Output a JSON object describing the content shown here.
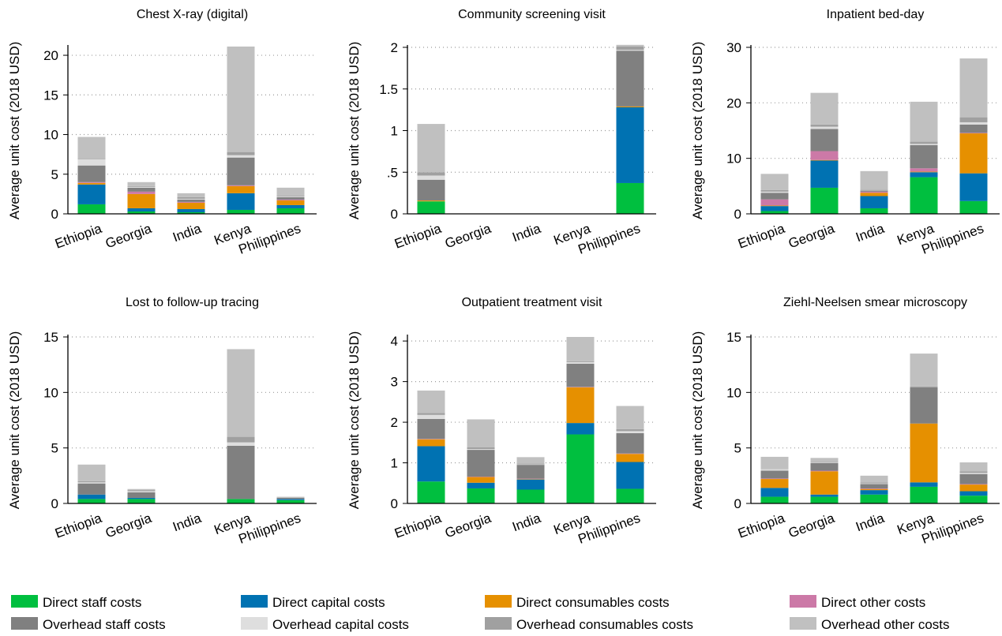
{
  "chart_data": {
    "type": "bar",
    "stacked": true,
    "ylabel": "Average unit cost (2018 USD)",
    "countries": [
      "Ethiopia",
      "Georgia",
      "India",
      "Kenya",
      "Philippines"
    ],
    "grid": "horizontal dotted",
    "legend_position": "bottom",
    "components": [
      {
        "name": "Direct staff costs",
        "color": "#00bf3f"
      },
      {
        "name": "Direct capital costs",
        "color": "#0072b2"
      },
      {
        "name": "Direct consumables costs",
        "color": "#e69000"
      },
      {
        "name": "Direct other costs",
        "color": "#cc79a7"
      },
      {
        "name": "Overhead staff costs",
        "color": "#808080"
      },
      {
        "name": "Overhead capital costs",
        "color": "#dedede"
      },
      {
        "name": "Overhead consumables costs",
        "color": "#a0a0a0"
      },
      {
        "name": "Overhead other costs",
        "color": "#c0c0c0"
      }
    ],
    "panels": [
      {
        "title": "Chest X-ray (digital)",
        "ylim": [
          0,
          21
        ],
        "ticks": [
          0,
          5,
          10,
          15,
          20
        ],
        "tick_labels": [
          "0",
          "5",
          "10",
          "15",
          "20"
        ],
        "values": [
          [
            1.2,
            2.5,
            0.2,
            0.1,
            2.1,
            0.8,
            0.1,
            2.7
          ],
          [
            0.3,
            0.4,
            1.8,
            0.3,
            0.5,
            0.1,
            0.1,
            0.5
          ],
          [
            0.2,
            0.4,
            0.8,
            0.1,
            0.3,
            0.1,
            0.2,
            0.5
          ],
          [
            0.5,
            2.1,
            0.9,
            0.1,
            3.5,
            0.3,
            0.4,
            13.3
          ],
          [
            0.7,
            0.4,
            0.6,
            0.1,
            0.3,
            0.1,
            0.1,
            1.0
          ]
        ]
      },
      {
        "title": "Community screening visit",
        "ylim": [
          0,
          2
        ],
        "ticks": [
          0,
          0.5,
          1,
          1.5,
          2
        ],
        "tick_labels": [
          "0",
          ".5",
          "1",
          "1.5",
          "2"
        ],
        "values": [
          [
            0.15,
            0.0,
            0.01,
            0.0,
            0.25,
            0.05,
            0.04,
            0.58
          ],
          [
            0,
            0,
            0,
            0,
            0,
            0,
            0,
            0
          ],
          [
            0,
            0,
            0,
            0,
            0,
            0,
            0,
            0
          ],
          [
            0,
            0,
            0,
            0,
            0,
            0,
            0,
            0
          ],
          [
            0.37,
            0.91,
            0.01,
            0.0,
            0.67,
            0.01,
            0.04,
            0.02
          ]
        ]
      },
      {
        "title": "Inpatient bed-day",
        "ylim": [
          0,
          30
        ],
        "ticks": [
          0,
          10,
          20,
          30
        ],
        "tick_labels": [
          "0",
          "10",
          "20",
          "30"
        ],
        "values": [
          [
            0.5,
            0.9,
            0.1,
            1.1,
            1.2,
            0.2,
            0.3,
            2.9
          ],
          [
            4.7,
            4.9,
            0.1,
            1.6,
            4.0,
            0.4,
            0.4,
            5.7
          ],
          [
            1.0,
            2.2,
            0.6,
            0.2,
            0.2,
            0.1,
            0.1,
            3.3
          ],
          [
            6.6,
            0.9,
            0.1,
            0.6,
            4.2,
            0.2,
            0.4,
            7.2
          ],
          [
            2.3,
            5.0,
            7.2,
            0.1,
            1.5,
            0.4,
            0.9,
            10.6
          ]
        ]
      },
      {
        "title": "Lost to follow-up tracing",
        "ylim": [
          0,
          15
        ],
        "ticks": [
          0,
          5,
          10,
          15
        ],
        "tick_labels": [
          "0",
          "5",
          "10",
          "15"
        ],
        "values": [
          [
            0.4,
            0.4,
            0.0,
            0.0,
            1.0,
            0.1,
            0.1,
            1.5
          ],
          [
            0.4,
            0.1,
            0.0,
            0.0,
            0.5,
            0.1,
            0.1,
            0.1
          ],
          [
            0,
            0,
            0,
            0,
            0,
            0,
            0,
            0
          ],
          [
            0.4,
            0.0,
            0.0,
            0.0,
            4.8,
            0.3,
            0.5,
            7.9
          ],
          [
            0.3,
            0.1,
            0.0,
            0.0,
            0.1,
            0.0,
            0.0,
            0.1
          ]
        ]
      },
      {
        "title": "Outpatient treatment visit",
        "ylim": [
          0,
          4.1
        ],
        "ticks": [
          0,
          1,
          2,
          3,
          4
        ],
        "tick_labels": [
          "0",
          "1",
          "2",
          "3",
          "4"
        ],
        "values": [
          [
            0.54,
            0.87,
            0.17,
            0.01,
            0.49,
            0.1,
            0.05,
            0.55
          ],
          [
            0.37,
            0.14,
            0.14,
            0.01,
            0.66,
            0.02,
            0.04,
            0.69
          ],
          [
            0.34,
            0.25,
            0.01,
            0.01,
            0.34,
            0.01,
            0.02,
            0.16
          ],
          [
            1.7,
            0.28,
            0.88,
            0.01,
            0.57,
            0.04,
            0.02,
            0.6
          ],
          [
            0.36,
            0.66,
            0.2,
            0.01,
            0.5,
            0.05,
            0.05,
            0.57
          ]
        ]
      },
      {
        "title": "Ziehl-Neelsen smear microscopy",
        "ylim": [
          0,
          15
        ],
        "ticks": [
          0,
          5,
          10,
          15
        ],
        "tick_labels": [
          "0",
          "5",
          "10",
          "15"
        ],
        "values": [
          [
            0.6,
            0.8,
            0.8,
            0.05,
            0.7,
            0.15,
            0.05,
            1.05
          ],
          [
            0.6,
            0.2,
            2.1,
            0.05,
            0.7,
            0.05,
            0.05,
            0.35
          ],
          [
            0.8,
            0.4,
            0.1,
            0.05,
            0.4,
            0.05,
            0.1,
            0.6
          ],
          [
            1.5,
            0.4,
            5.3,
            0.0,
            3.3,
            0.05,
            0.05,
            2.9
          ],
          [
            0.7,
            0.4,
            0.6,
            0.05,
            0.9,
            0.1,
            0.15,
            0.8
          ]
        ]
      }
    ]
  }
}
